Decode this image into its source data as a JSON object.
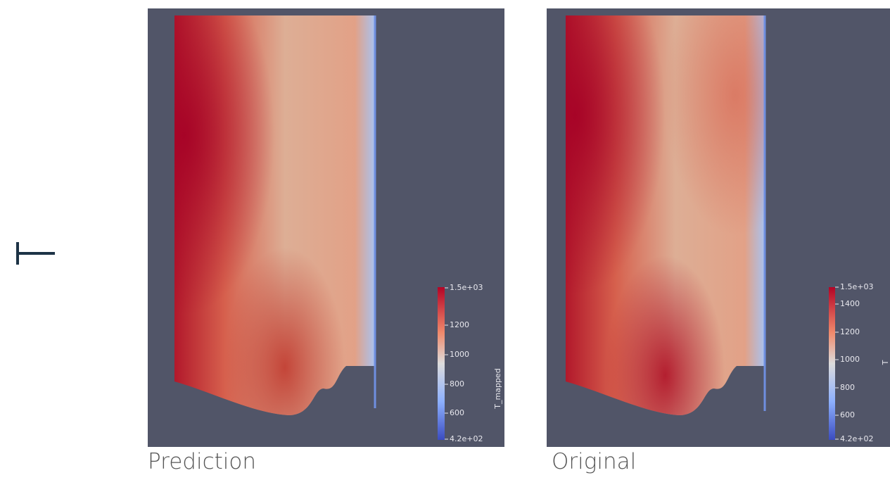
{
  "panels": [
    {
      "caption": "Prediction",
      "colorbar": {
        "title": "T_mapped",
        "labels": [
          "1.5e+03",
          "1200",
          "1000",
          "800",
          "600",
          "4.2e+02"
        ]
      }
    },
    {
      "caption": "Original",
      "colorbar": {
        "title": "T",
        "labels": [
          "1.5e+03",
          "1400",
          "1200",
          "1000",
          "800",
          "600",
          "4.2e+02"
        ]
      }
    }
  ]
}
